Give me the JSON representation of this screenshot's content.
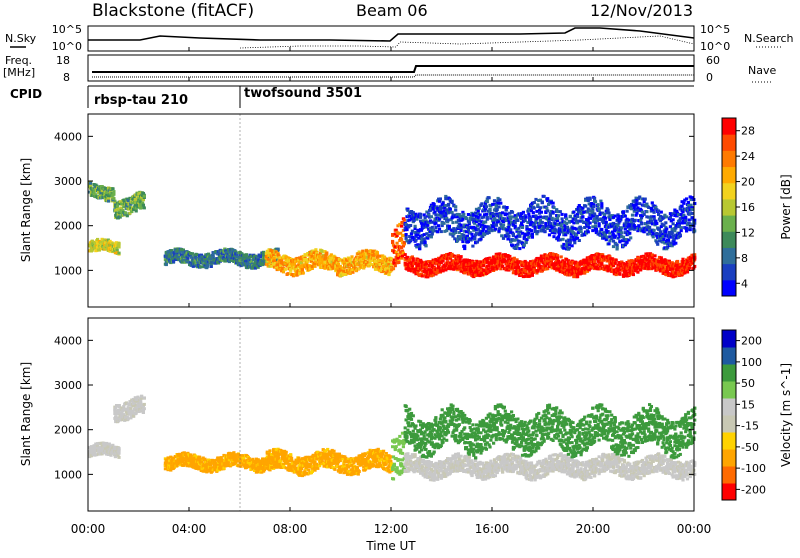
{
  "header": {
    "station": "Blackstone (fitACF)",
    "beam": "Beam 06",
    "date": "12/Nov/2013"
  },
  "side_labels": {
    "nsky": "N.Sky",
    "freq_line1": "Freq.",
    "freq_line2": "[MHz]",
    "cpid": "CPID",
    "nsearch": "N.Search",
    "nave": "Nave"
  },
  "cpid_programs": [
    {
      "name": "rbsp-tau 210",
      "start_hour": 0
    },
    {
      "name": "twofsound 3501",
      "start_hour": 6
    }
  ],
  "axes": {
    "xlabel": "Time UT",
    "xticks": [
      "00:00",
      "04:00",
      "08:00",
      "12:00",
      "16:00",
      "20:00",
      "00:00"
    ],
    "ylabel": "Slant Range [km]",
    "yticks": [
      "1000",
      "2000",
      "3000",
      "4000"
    ],
    "nsky_ticks": [
      "10^5",
      "10^0"
    ],
    "nsearch_ticks": [
      "10^5",
      "10^0"
    ],
    "freq_ticks": [
      "18",
      "8"
    ],
    "nave_ticks": [
      "60",
      "0"
    ]
  },
  "power_colorbar": {
    "label": "Power [dB]",
    "ticks": [
      "28",
      "24",
      "20",
      "16",
      "12",
      "8",
      "4"
    ],
    "colors": [
      "#0000ff",
      "#1a3fc0",
      "#2f6e9a",
      "#3d8a5a",
      "#6ab04c",
      "#b8c832",
      "#f2d21e",
      "#ffaa00",
      "#ff7a00",
      "#ff4a00",
      "#ff0000"
    ]
  },
  "velocity_colorbar": {
    "label": "Velocity [m s^-1]",
    "ticks": [
      "200",
      "100",
      "50",
      "15",
      "-15",
      "-50",
      "-100",
      "-200"
    ],
    "colors": [
      "#ff0000",
      "#ff6a00",
      "#ffa500",
      "#ffd200",
      "#c8c8b4",
      "#c8c8c8",
      "#78c850",
      "#3c9a3c",
      "#1e5aa0",
      "#0000c8"
    ]
  },
  "chart_data": [
    {
      "type": "heatmap",
      "title": "Power",
      "xlabel": "Time UT",
      "ylabel": "Slant Range [km]",
      "xlim": [
        0,
        24
      ],
      "ylim": [
        180,
        4500
      ],
      "value_label": "Power [dB]",
      "features": [
        {
          "t0": 0,
          "t1": 1.2,
          "r_center": 1550,
          "r_width": 250,
          "level": 16
        },
        {
          "t0": 1.0,
          "t1": 2.2,
          "r_center": 2500,
          "r_width": 400,
          "level": 12
        },
        {
          "t0": 0.0,
          "t1": 1.0,
          "r_center": 2800,
          "r_width": 300,
          "level": 12
        },
        {
          "t0": 3.0,
          "t1": 7.5,
          "r_center": 1300,
          "r_width": 300,
          "level": 8
        },
        {
          "t0": 7.0,
          "t1": 12.0,
          "r_center": 1200,
          "r_width": 400,
          "level": 20
        },
        {
          "t0": 12.0,
          "t1": 12.5,
          "r_center": 1600,
          "r_width": 900,
          "level": 24
        },
        {
          "t0": 12.5,
          "t1": 24.0,
          "r_center": 1150,
          "r_width": 350,
          "level": 28
        },
        {
          "t0": 12.5,
          "t1": 24.0,
          "r_center": 2100,
          "r_width": 800,
          "level": 4
        }
      ]
    },
    {
      "type": "heatmap",
      "title": "Velocity",
      "xlabel": "Time UT",
      "ylabel": "Slant Range [km]",
      "xlim": [
        0,
        24
      ],
      "ylim": [
        180,
        4500
      ],
      "value_label": "Velocity [m s^-1]",
      "features": [
        {
          "t0": 0,
          "t1": 1.2,
          "r_center": 1550,
          "r_width": 250,
          "level": 0
        },
        {
          "t0": 1.0,
          "t1": 2.2,
          "r_center": 2500,
          "r_width": 400,
          "level": 0
        },
        {
          "t0": 3.0,
          "t1": 7.5,
          "r_center": 1300,
          "r_width": 300,
          "level": -50
        },
        {
          "t0": 7.0,
          "t1": 12.0,
          "r_center": 1300,
          "r_width": 400,
          "level": -50
        },
        {
          "t0": 12.0,
          "t1": 12.5,
          "r_center": 1600,
          "r_width": 900,
          "level": 50
        },
        {
          "t0": 12.5,
          "t1": 24.0,
          "r_center": 1200,
          "r_width": 400,
          "level": 0
        },
        {
          "t0": 12.5,
          "t1": 24.0,
          "r_center": 2000,
          "r_width": 800,
          "level": 100
        }
      ]
    }
  ]
}
